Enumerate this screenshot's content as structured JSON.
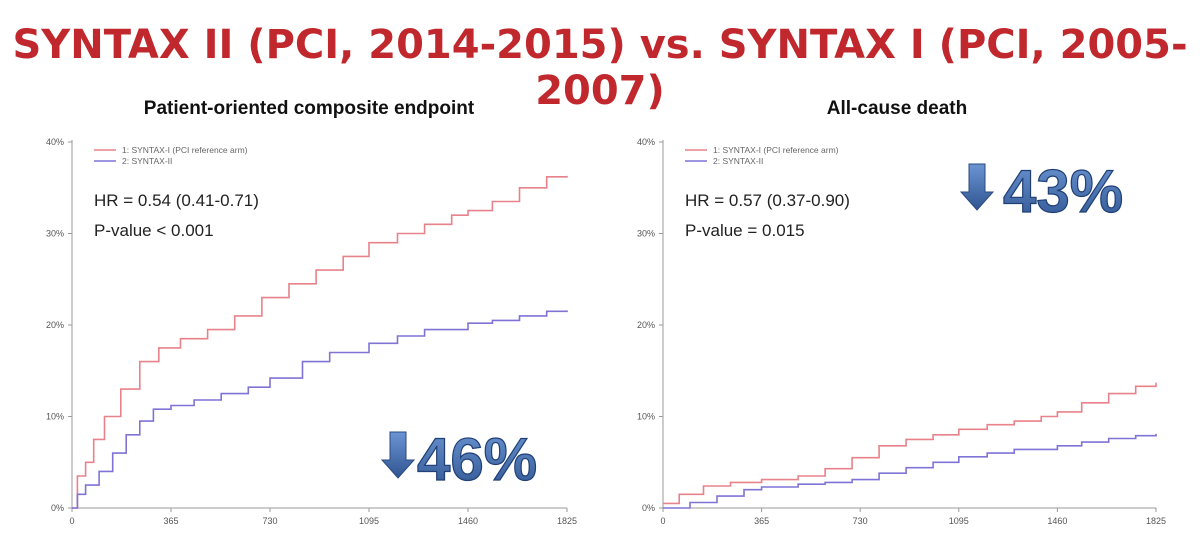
{
  "slide": {
    "title": "SYNTAX II (PCI, 2014-2015) vs. SYNTAX I (PCI, 2005-2007)"
  },
  "colors": {
    "title": "#c0282d",
    "syntax1": "#e8828a",
    "syntax2": "#7f74d6",
    "big_number": "#3f69a8",
    "arrow": "#3f69a8",
    "axis": "#9a9a9a"
  },
  "chart_data": [
    {
      "type": "line",
      "title": "Patient-oriented composite endpoint",
      "xlabel": "",
      "ylabel": "",
      "x_ticks": [
        "0",
        "365",
        "730",
        "1095",
        "1460",
        "1825"
      ],
      "y_ticks": [
        "0%",
        "10%",
        "20%",
        "30%",
        "40%"
      ],
      "xlim": [
        0,
        1825
      ],
      "ylim": [
        0,
        40
      ],
      "legend_position": "top-left",
      "stats": [
        "HR = 0.54 (0.41-0.71)",
        "P-value  < 0.001"
      ],
      "reduction": "46%",
      "reduction_position": "bottom-right",
      "series": [
        {
          "name": "1: SYNTAX-I (PCI reference arm)",
          "color_key": "syntax1",
          "points": [
            [
              0,
              0
            ],
            [
              20,
              3.5
            ],
            [
              50,
              5
            ],
            [
              80,
              7.5
            ],
            [
              120,
              10
            ],
            [
              180,
              13
            ],
            [
              250,
              16
            ],
            [
              320,
              17.5
            ],
            [
              400,
              18.5
            ],
            [
              500,
              19.5
            ],
            [
              600,
              21
            ],
            [
              700,
              23
            ],
            [
              800,
              24.5
            ],
            [
              900,
              26
            ],
            [
              1000,
              27.5
            ],
            [
              1095,
              29
            ],
            [
              1200,
              30
            ],
            [
              1300,
              31
            ],
            [
              1400,
              32
            ],
            [
              1460,
              32.5
            ],
            [
              1550,
              33.5
            ],
            [
              1650,
              35
            ],
            [
              1750,
              36.2
            ],
            [
              1825,
              36.3
            ]
          ]
        },
        {
          "name": "2: SYNTAX-II",
          "color_key": "syntax2",
          "points": [
            [
              0,
              0
            ],
            [
              20,
              1.5
            ],
            [
              50,
              2.5
            ],
            [
              100,
              4
            ],
            [
              150,
              6
            ],
            [
              200,
              8
            ],
            [
              250,
              9.5
            ],
            [
              300,
              10.8
            ],
            [
              365,
              11.2
            ],
            [
              450,
              11.8
            ],
            [
              550,
              12.5
            ],
            [
              650,
              13.2
            ],
            [
              730,
              14.2
            ],
            [
              850,
              16
            ],
            [
              950,
              17
            ],
            [
              1095,
              18
            ],
            [
              1200,
              18.8
            ],
            [
              1300,
              19.5
            ],
            [
              1460,
              20.2
            ],
            [
              1550,
              20.5
            ],
            [
              1650,
              21
            ],
            [
              1750,
              21.5
            ],
            [
              1825,
              21.6
            ]
          ]
        }
      ]
    },
    {
      "type": "line",
      "title": "All-cause death",
      "xlabel": "",
      "ylabel": "",
      "x_ticks": [
        "0",
        "365",
        "730",
        "1095",
        "1460",
        "1825"
      ],
      "y_ticks": [
        "0%",
        "10%",
        "20%",
        "30%",
        "40%"
      ],
      "xlim": [
        0,
        1825
      ],
      "ylim": [
        0,
        40
      ],
      "legend_position": "top-left",
      "stats": [
        "HR = 0.57 (0.37-0.90)",
        "P-value  = 0.015"
      ],
      "reduction": "43%",
      "reduction_position": "top-right",
      "series": [
        {
          "name": "1: SYNTAX-I (PCI reference arm)",
          "color_key": "syntax1",
          "points": [
            [
              0,
              0.5
            ],
            [
              60,
              1.5
            ],
            [
              150,
              2.4
            ],
            [
              250,
              2.8
            ],
            [
              365,
              3.1
            ],
            [
              500,
              3.5
            ],
            [
              600,
              4.3
            ],
            [
              700,
              5.5
            ],
            [
              800,
              6.8
            ],
            [
              900,
              7.5
            ],
            [
              1000,
              8
            ],
            [
              1095,
              8.6
            ],
            [
              1200,
              9.1
            ],
            [
              1300,
              9.5
            ],
            [
              1400,
              10
            ],
            [
              1460,
              10.5
            ],
            [
              1550,
              11.5
            ],
            [
              1650,
              12.5
            ],
            [
              1750,
              13.3
            ],
            [
              1825,
              13.7
            ]
          ]
        },
        {
          "name": "2: SYNTAX-II",
          "color_key": "syntax2",
          "points": [
            [
              0,
              0
            ],
            [
              100,
              0.6
            ],
            [
              200,
              1.3
            ],
            [
              300,
              2
            ],
            [
              365,
              2.3
            ],
            [
              500,
              2.6
            ],
            [
              600,
              2.8
            ],
            [
              700,
              3.1
            ],
            [
              800,
              3.8
            ],
            [
              900,
              4.4
            ],
            [
              1000,
              5
            ],
            [
              1095,
              5.6
            ],
            [
              1200,
              6
            ],
            [
              1300,
              6.4
            ],
            [
              1460,
              6.8
            ],
            [
              1550,
              7.2
            ],
            [
              1650,
              7.6
            ],
            [
              1750,
              7.9
            ],
            [
              1825,
              8.1
            ]
          ]
        }
      ]
    }
  ]
}
